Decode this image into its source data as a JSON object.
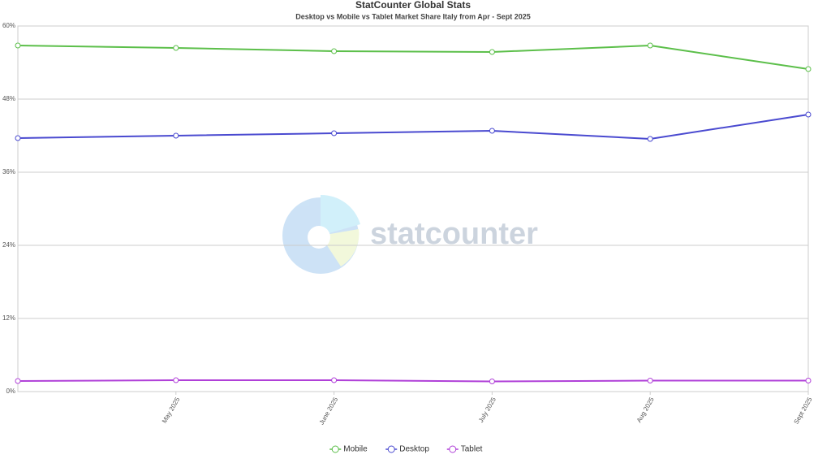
{
  "chart_data": {
    "type": "line",
    "title": "StatCounter Global Stats",
    "subtitle": "Desktop vs Mobile vs Tablet Market Share Italy from Apr - Sept 2025",
    "watermark": "statcounter",
    "categories": [
      null,
      "May 2025",
      "June 2025",
      "July 2025",
      "Aug 2025",
      "Sept 2025"
    ],
    "series": [
      {
        "name": "Mobile",
        "color": "#5cbf4a",
        "values": [
          56.8,
          56.4,
          55.87,
          55.73,
          56.8,
          52.93
        ]
      },
      {
        "name": "Desktop",
        "color": "#4a4ad0",
        "values": [
          41.6,
          42.0,
          42.4,
          42.8,
          41.47,
          45.47
        ]
      },
      {
        "name": "Tablet",
        "color": "#b040d8",
        "values": [
          1.73,
          1.87,
          1.87,
          1.67,
          1.8,
          1.8
        ]
      }
    ],
    "ylim": [
      0,
      60
    ],
    "yticks": [
      {
        "value": 0,
        "label": "0%"
      },
      {
        "value": 12,
        "label": "12%"
      },
      {
        "value": 24,
        "label": "24%"
      },
      {
        "value": 36,
        "label": "36%"
      },
      {
        "value": 48,
        "label": "48%"
      },
      {
        "value": 60,
        "label": "60%"
      }
    ],
    "grid": true,
    "legend": "bottom"
  }
}
